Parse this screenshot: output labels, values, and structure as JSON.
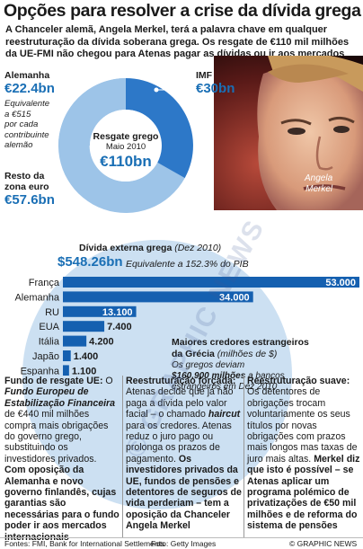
{
  "title": "Opções para resolver a crise da dívida grega",
  "subtitle": "A Chanceler alemã, Angela Merkel, terá a palavra chave em qualquer reestruturação da dívida soberana grega. Os resgate de €110 mil milhões da UE-FMI não chegou para Atenas pagar as dívidas ou ir aos mercados",
  "photo_caption": [
    "Angela",
    "Merkel"
  ],
  "colors": {
    "accent": "#1a6fb5",
    "donut_dark": "#2d78c8",
    "donut_light": "#9dc4e8",
    "bar": "#1560b0",
    "bg_circle": "#c3daf0"
  },
  "donut": {
    "center": {
      "label": "Resgate grego",
      "date": "Maio 2010",
      "total": "€110bn"
    },
    "segments": [
      {
        "label": "Alemanha",
        "value": "€22.4bn",
        "note": [
          "Equivalente",
          "a €515",
          "por cada",
          "contribuinte",
          "alemão"
        ]
      },
      {
        "label": "IMF",
        "value": "€30bn"
      },
      {
        "label": [
          "Resto da",
          "zona euro"
        ],
        "value": "€57.6bn"
      }
    ]
  },
  "external_debt": {
    "title": "Dívida externa grega",
    "title_note": "(Dez 2010)",
    "value": "$548.26bn",
    "equivalent": "Equivalente a 152.3% do PIB"
  },
  "creditors_box": {
    "title": "Maiores credores estrangeiros",
    "title2": "da Grécia",
    "title2_note": "(milhões de $)",
    "note_pre": "Os gregos deviam",
    "note_bold": "$160.900 milhões",
    "note_post": "a bancos",
    "note_line3": "estrangeiros em Dez 2010"
  },
  "chart_data": {
    "type": "bar",
    "orientation": "horizontal",
    "title": "Maiores credores estrangeiros da Grécia (milhões de $)",
    "categories": [
      "França",
      "Alemanha",
      "RU",
      "EUA",
      "Itália",
      "Japão",
      "Espanha"
    ],
    "values": [
      53000,
      34000,
      13100,
      7400,
      4200,
      1400,
      1100
    ],
    "value_labels": [
      "53.000",
      "34.000",
      "13.100",
      "7.400",
      "4.200",
      "1.400",
      "1.100"
    ],
    "xlim": [
      0,
      53000
    ]
  },
  "columns": [
    {
      "heading": "Fundo de resgate UE:",
      "parts": [
        {
          "t": " O ",
          "s": "n"
        },
        {
          "t": "Fundo Europeu de Estabilização Financeira",
          "s": "bi"
        },
        {
          "t": " de €440 mil milhões compra mais obrigações do governo grego, substituindo os investidores privados. ",
          "s": "n"
        },
        {
          "t": "Com oposição da Alemanha e novo governo finlandês, cujas garantias são necessárias para o fundo poder ir aos mercados internacionais",
          "s": "b"
        }
      ]
    },
    {
      "heading": "Reestruturação forçada:",
      "parts": [
        {
          "t": " Atenas decide que já não paga a dívida pelo valor facial – o chamado ",
          "s": "n"
        },
        {
          "t": "haircut",
          "s": "bi"
        },
        {
          "t": " para os credores. Atenas reduz o juro pago ou prolonga os prazos de pagamento. ",
          "s": "n"
        },
        {
          "t": "Os investidores privados da UE, fundos de pensões e detentores de seguros de vida perderiam – tem a oposição da Chanceler Angela Merkel",
          "s": "b"
        }
      ]
    },
    {
      "heading": "Reestruturação suave:",
      "parts": [
        {
          "t": " Os detentores de obrigações trocam voluntariamente os seus títulos por novas obrigações com prazos mais longos mas taxas de juro mais altas. ",
          "s": "n"
        },
        {
          "t": "Merkel diz que isto é possível – se Atenas aplicar um programa polémico de privatizações de €50 mil milhões e de reforma do sistema de pensões",
          "s": "b"
        }
      ]
    }
  ],
  "footer": {
    "sources": "Fontes: FMI, Bank for International Settlements",
    "photo": "Foto: Getty Images",
    "credit": "© GRAPHIC NEWS"
  },
  "watermark": "© GRAPHIC NEWS"
}
